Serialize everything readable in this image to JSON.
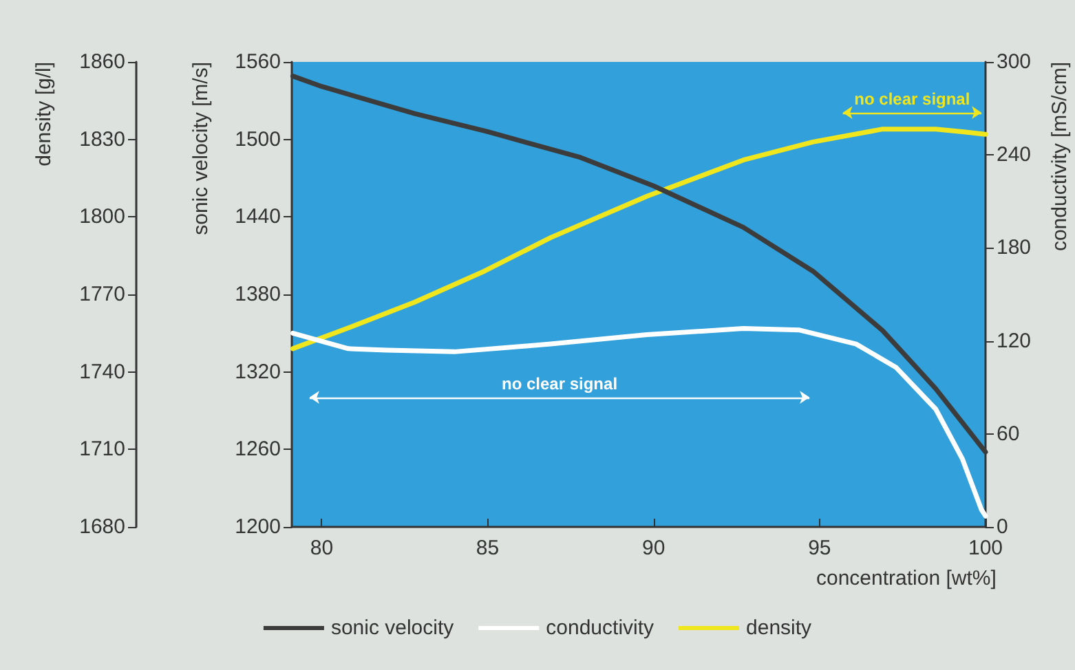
{
  "chart_data": {
    "type": "line",
    "xlabel": "concentration [wt%]",
    "ylabel": "sonic velocity [m/s]",
    "y2label": "conductivity [mS/cm]",
    "y3label": "density [g/l]",
    "xlim": [
      79.1,
      100
    ],
    "xticks": [
      80,
      85,
      90,
      95,
      100
    ],
    "ylim": [
      1200,
      1560
    ],
    "yticks": [
      1200,
      1260,
      1320,
      1380,
      1440,
      1500,
      1560
    ],
    "y2lim": [
      0,
      300
    ],
    "y2ticks": [
      0,
      60,
      120,
      180,
      240,
      300
    ],
    "y3lim": [
      1680,
      1860
    ],
    "y3ticks": [
      1680,
      1710,
      1740,
      1770,
      1800,
      1830,
      1860
    ],
    "series": [
      {
        "name": "sonic velocity",
        "color": "#3c3c3c",
        "axis": "y",
        "x": [
          79.13,
          80,
          82.8,
          85,
          87.8,
          90,
          92.7,
          94.8,
          96.9,
          98.5,
          100
        ],
        "values": [
          1549,
          1541,
          1520,
          1506,
          1486,
          1464,
          1432,
          1398,
          1352,
          1307,
          1258
        ]
      },
      {
        "name": "conductivity",
        "color": "#ffffff",
        "axis": "y2",
        "x": [
          79.13,
          80.8,
          81.95,
          84,
          86.9,
          89.8,
          92.7,
          94.4,
          96.1,
          97.3,
          98.5,
          99.3,
          99.88,
          100
        ],
        "values": [
          125,
          115,
          114,
          113,
          118,
          124,
          128,
          127,
          118,
          103,
          76,
          44,
          11,
          7
        ]
      },
      {
        "name": "density",
        "color": "#f0e61e",
        "axis": "y3",
        "x": [
          79.13,
          80.8,
          82.8,
          84.9,
          86.9,
          89.8,
          92.7,
          94.8,
          96.9,
          98.5,
          99.3,
          100
        ],
        "values": [
          1749,
          1757,
          1767,
          1779,
          1792,
          1808,
          1822,
          1829,
          1834,
          1834,
          1833,
          1832
        ]
      }
    ],
    "annotations": [
      "no clear signal",
      "no clear signal"
    ],
    "legend": "bottom",
    "grid": false,
    "marker": "none",
    "line_style": "solid"
  }
}
